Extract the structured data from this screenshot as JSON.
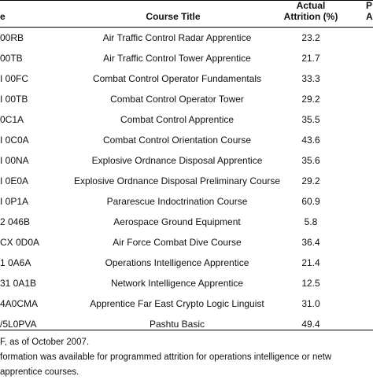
{
  "header": {
    "code_label": "e",
    "title_label": "Course Title",
    "attrition_label": "Actual\nAttrition (%)",
    "extra_label": "P\nA"
  },
  "rows": [
    {
      "code": "00RB",
      "title": "Air Traffic Control Radar Apprentice",
      "attrition": "23.2"
    },
    {
      "code": "00TB",
      "title": "Air Traffic Control Tower Apprentice",
      "attrition": "21.7"
    },
    {
      "code": "I 00FC",
      "title": "Combat Control Operator Fundamentals",
      "attrition": "33.3"
    },
    {
      "code": "I 00TB",
      "title": "Combat Control Operator Tower",
      "attrition": "29.2"
    },
    {
      "code": "0C1A",
      "title": "Combat Control Apprentice",
      "attrition": "35.5"
    },
    {
      "code": "I 0C0A",
      "title": "Combat Control Orientation Course",
      "attrition": "43.6"
    },
    {
      "code": "I 00NA",
      "title": "Explosive Ordnance Disposal Apprentice",
      "attrition": "35.6"
    },
    {
      "code": "I 0E0A",
      "title": "Explosive Ordnance Disposal Preliminary Course",
      "attrition": "29.2"
    },
    {
      "code": "I 0P1A",
      "title": "Pararescue Indoctrination Course",
      "attrition": "60.9"
    },
    {
      "code": "2 046B",
      "title": "Aerospace Ground Equipment",
      "attrition": "5.8"
    },
    {
      "code": "CX 0D0A",
      "title": "Air Force Combat Dive Course",
      "attrition": "36.4"
    },
    {
      "code": "1 0A6A",
      "title": "Operations Intelligence Apprentice",
      "attrition": "21.4"
    },
    {
      "code": "31 0A1B",
      "title": "Network Intelligence Apprentice",
      "attrition": "12.5"
    },
    {
      "code": "4A0CMA",
      "title": "Apprentice Far East Crypto Logic Linguist",
      "attrition": "31.0"
    },
    {
      "code": "/5L0PVA",
      "title": "Pashtu Basic",
      "attrition": "49.4"
    }
  ],
  "notes": [
    "F, as of October 2007.",
    "formation was available for programmed attrition for operations intelligence or netw",
    "apprentice courses."
  ]
}
